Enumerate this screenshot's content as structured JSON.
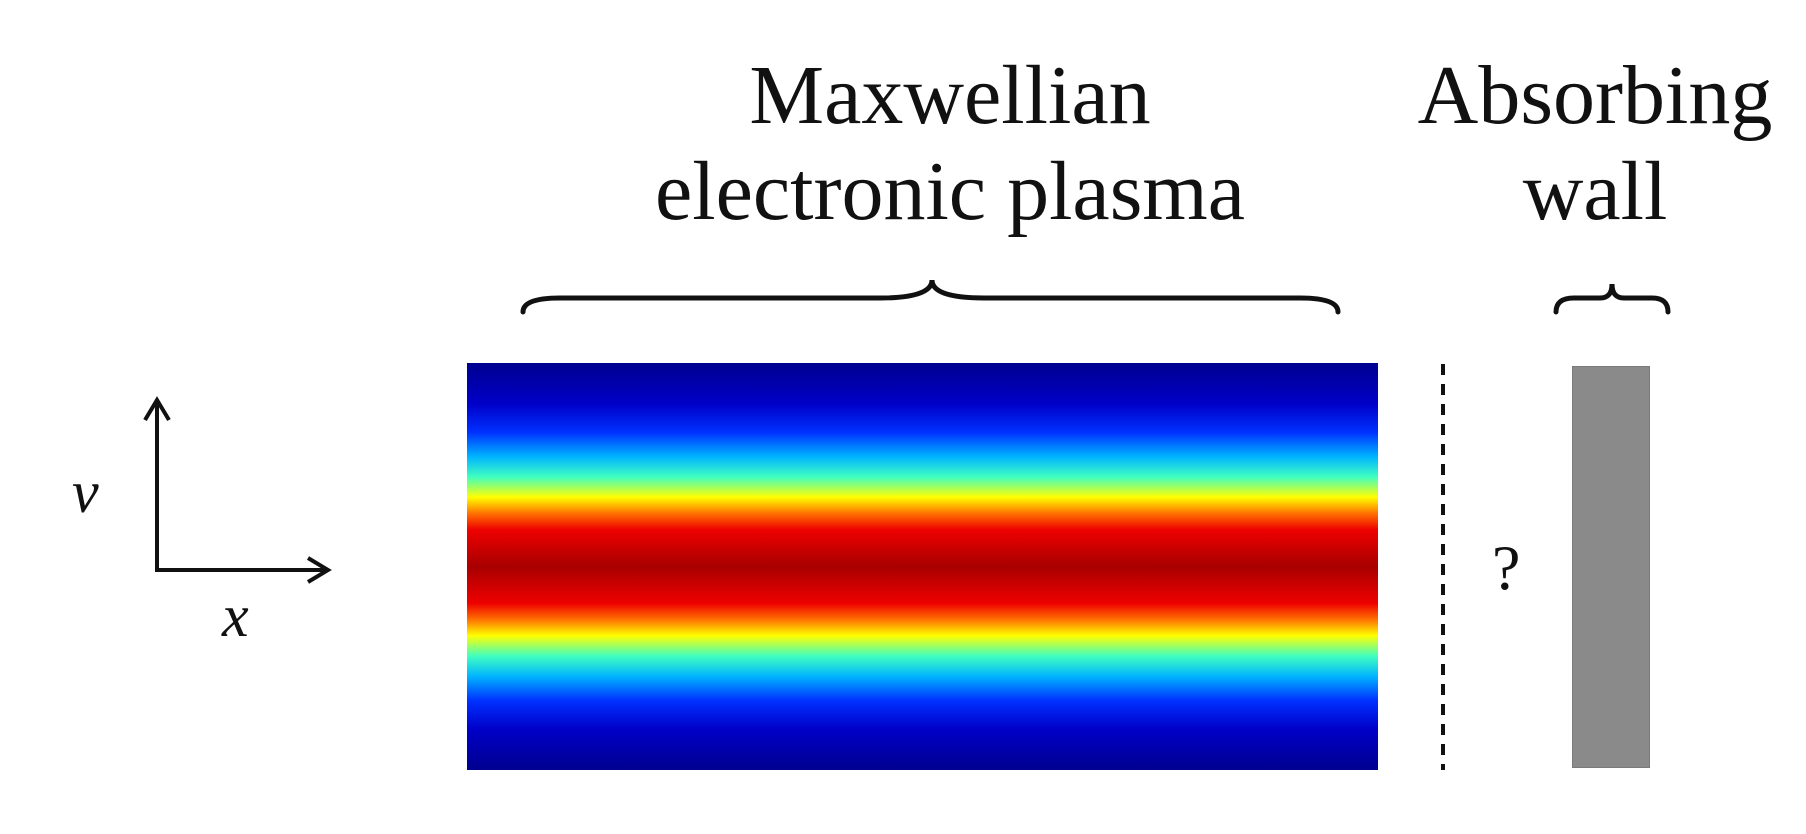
{
  "labels": {
    "plasma_line1": "Maxwellian",
    "plasma_line2": "electronic plasma",
    "wall_line1": "Absorbing",
    "wall_line2": "wall",
    "v_axis": "v",
    "x_axis": "x",
    "question": "?"
  },
  "colors": {
    "ink": "#111111",
    "wall_fill": "#8a8a8a",
    "plasma_colormap": "jet",
    "plasma_peak": "#a80000",
    "plasma_edge": "#00008f"
  },
  "icons": {
    "axes": "axis-arrows-icon",
    "plasma_brace": "curly-brace-icon",
    "wall_brace": "curly-brace-icon",
    "boundary": "dashed-line"
  }
}
